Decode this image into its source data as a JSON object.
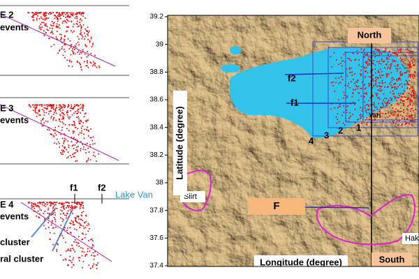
{
  "left_panels": {
    "panel_2": {
      "title": "E 2",
      "subtitle": "events"
    },
    "panel_3": {
      "title": "E 3",
      "subtitle": "events"
    },
    "panel_4": {
      "title": "E 4",
      "subtitle": "events",
      "fault_1": "f1",
      "fault_2": "f2",
      "lake": "Lake Van",
      "cluster_1": "cluster",
      "cluster_2": "ral cluster"
    }
  },
  "map": {
    "ylabel": "Latitude (degree)",
    "xlabel": "Longitude (degree)",
    "ylim": [
      37.4,
      39.2
    ],
    "yticks": [
      39.2,
      39,
      38.8,
      38.6,
      38.4,
      38.2,
      38,
      37.8,
      37.6,
      37.4
    ],
    "labels": {
      "north": "North",
      "south": "South",
      "fault_f": "F",
      "fault_f1": "f1",
      "fault_f2": "f2",
      "city_van": "Van",
      "city_siirt": "Siirt",
      "city_hakkari": "Hak"
    },
    "sections": [
      "1",
      "2",
      "3",
      "4"
    ]
  }
}
